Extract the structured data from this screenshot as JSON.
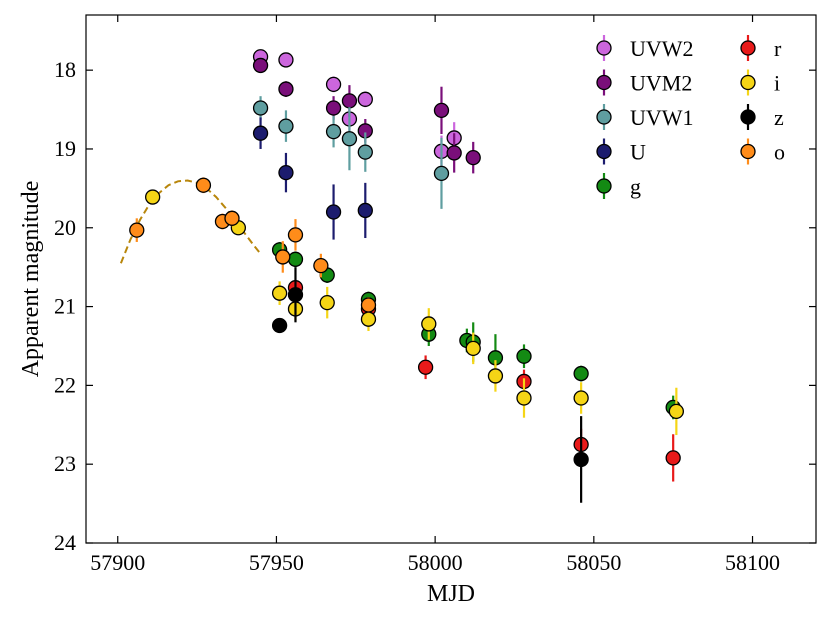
{
  "chart_data": {
    "type": "scatter",
    "title": "",
    "xlabel": "MJD",
    "ylabel": "Apparent magnitude",
    "xlim": [
      57890,
      58120
    ],
    "ylim": [
      24,
      17.3
    ],
    "y_inverted": true,
    "x_ticks": [
      57900,
      57950,
      58000,
      58050,
      58100
    ],
    "y_ticks": [
      18,
      19,
      20,
      21,
      22,
      23,
      24
    ],
    "x_tick_labels": [
      "57900",
      "57950",
      "58000",
      "58050",
      "58100"
    ],
    "y_tick_labels": [
      "18",
      "19",
      "20",
      "21",
      "22",
      "23",
      "24"
    ],
    "legend_position": "top-right",
    "series": [
      {
        "name": "UVW2",
        "color": "#cc66dd",
        "points": [
          {
            "x": 57945,
            "y": 17.83,
            "err": 0.08
          },
          {
            "x": 57953,
            "y": 17.87,
            "err": 0.08
          },
          {
            "x": 57968,
            "y": 18.18,
            "err": 0.1
          },
          {
            "x": 57973,
            "y": 18.62,
            "err": 0.15
          },
          {
            "x": 57978,
            "y": 18.37,
            "err": 0.1
          },
          {
            "x": 58002,
            "y": 19.03,
            "err": 0.2
          },
          {
            "x": 58006,
            "y": 18.86,
            "err": 0.2
          }
        ]
      },
      {
        "name": "UVM2",
        "color": "#7a0f7a",
        "points": [
          {
            "x": 57945,
            "y": 17.94,
            "err": 0.08
          },
          {
            "x": 57953,
            "y": 18.24,
            "err": 0.1
          },
          {
            "x": 57968,
            "y": 18.48,
            "err": 0.15
          },
          {
            "x": 57973,
            "y": 18.39,
            "err": 0.2
          },
          {
            "x": 57978,
            "y": 18.77,
            "err": 0.15
          },
          {
            "x": 58002,
            "y": 18.51,
            "err": 0.3
          },
          {
            "x": 58006,
            "y": 19.05,
            "err": 0.25
          },
          {
            "x": 58012,
            "y": 19.11,
            "err": 0.2
          }
        ]
      },
      {
        "name": "UVW1",
        "color": "#5f9ea0",
        "points": [
          {
            "x": 57945,
            "y": 18.48,
            "err": 0.15
          },
          {
            "x": 57953,
            "y": 18.71,
            "err": 0.2
          },
          {
            "x": 57968,
            "y": 18.78,
            "err": 0.2
          },
          {
            "x": 57973,
            "y": 18.87,
            "err": 0.4
          },
          {
            "x": 57978,
            "y": 19.04,
            "err": 0.25
          },
          {
            "x": 58002,
            "y": 19.31,
            "err": 0.45
          }
        ]
      },
      {
        "name": "U",
        "color": "#1c1c6e",
        "points": [
          {
            "x": 57945,
            "y": 18.8,
            "err": 0.2
          },
          {
            "x": 57953,
            "y": 19.3,
            "err": 0.25
          },
          {
            "x": 57968,
            "y": 19.8,
            "err": 0.35
          },
          {
            "x": 57978,
            "y": 19.78,
            "err": 0.35
          }
        ]
      },
      {
        "name": "g",
        "color": "#138a13",
        "points": [
          {
            "x": 57951,
            "y": 20.28,
            "err": 0.1
          },
          {
            "x": 57956,
            "y": 20.4,
            "err": 0.1
          },
          {
            "x": 57966,
            "y": 20.6,
            "err": 0.1
          },
          {
            "x": 57979,
            "y": 20.91,
            "err": 0.1
          },
          {
            "x": 57998,
            "y": 21.35,
            "err": 0.15
          },
          {
            "x": 58010,
            "y": 21.43,
            "err": 0.15
          },
          {
            "x": 58012,
            "y": 21.45,
            "err": 0.25
          },
          {
            "x": 58019,
            "y": 21.65,
            "err": 0.3
          },
          {
            "x": 58028,
            "y": 21.63,
            "err": 0.15
          },
          {
            "x": 58046,
            "y": 21.85,
            "err": 0.1
          },
          {
            "x": 58075,
            "y": 22.28,
            "err": 0.15
          }
        ]
      },
      {
        "name": "r",
        "color": "#e81a1a",
        "points": [
          {
            "x": 57956,
            "y": 20.76,
            "err": 0.1
          },
          {
            "x": 57979,
            "y": 21.03,
            "err": 0.1
          },
          {
            "x": 57997,
            "y": 21.77,
            "err": 0.15
          },
          {
            "x": 58028,
            "y": 21.95,
            "err": 0.15
          },
          {
            "x": 58046,
            "y": 22.75,
            "err": 0.2
          },
          {
            "x": 58075,
            "y": 22.92,
            "err": 0.3
          }
        ]
      },
      {
        "name": "i",
        "color": "#f5d516",
        "points": [
          {
            "x": 57911,
            "y": 19.61,
            "err": 0.05
          },
          {
            "x": 57938,
            "y": 20.0,
            "err": 0.05
          },
          {
            "x": 57951,
            "y": 20.83,
            "err": 0.15
          },
          {
            "x": 57956,
            "y": 21.03,
            "err": 0.15
          },
          {
            "x": 57966,
            "y": 20.95,
            "err": 0.2
          },
          {
            "x": 57979,
            "y": 21.16,
            "err": 0.15
          },
          {
            "x": 57998,
            "y": 21.22,
            "err": 0.2
          },
          {
            "x": 58012,
            "y": 21.53,
            "err": 0.2
          },
          {
            "x": 58019,
            "y": 21.88,
            "err": 0.2
          },
          {
            "x": 58028,
            "y": 22.16,
            "err": 0.25
          },
          {
            "x": 58046,
            "y": 22.16,
            "err": 0.2
          },
          {
            "x": 58076,
            "y": 22.33,
            "err": 0.3
          }
        ]
      },
      {
        "name": "z",
        "color": "#000000",
        "points": [
          {
            "x": 57951,
            "y": 21.24,
            "err": 0.05
          },
          {
            "x": 57956,
            "y": 20.85,
            "err": 0.35
          },
          {
            "x": 58046,
            "y": 22.94,
            "err": 0.55
          }
        ]
      },
      {
        "name": "o",
        "color": "#ff8c1a",
        "points": [
          {
            "x": 57906,
            "y": 20.03,
            "err": 0.15
          },
          {
            "x": 57927,
            "y": 19.46,
            "err": 0.1
          },
          {
            "x": 57933,
            "y": 19.92,
            "err": 0.1
          },
          {
            "x": 57936,
            "y": 19.88,
            "err": 0.1
          },
          {
            "x": 57952,
            "y": 20.37,
            "err": 0.2
          },
          {
            "x": 57956,
            "y": 20.09,
            "err": 0.2
          },
          {
            "x": 57964,
            "y": 20.48,
            "err": 0.15
          },
          {
            "x": 57979,
            "y": 20.98,
            "err": 0.1
          }
        ]
      }
    ],
    "fit_curve": {
      "name": "fit",
      "color": "#b8860b",
      "style": "dashed",
      "x": [
        57901,
        57904,
        57907,
        57910,
        57913,
        57916,
        57919,
        57922,
        57925,
        57928,
        57931,
        57934,
        57937,
        57940,
        57943,
        57945
      ],
      "y": [
        20.45,
        20.15,
        19.9,
        19.7,
        19.56,
        19.46,
        19.41,
        19.4,
        19.43,
        19.5,
        19.61,
        19.75,
        19.91,
        20.07,
        20.23,
        20.33
      ]
    }
  }
}
